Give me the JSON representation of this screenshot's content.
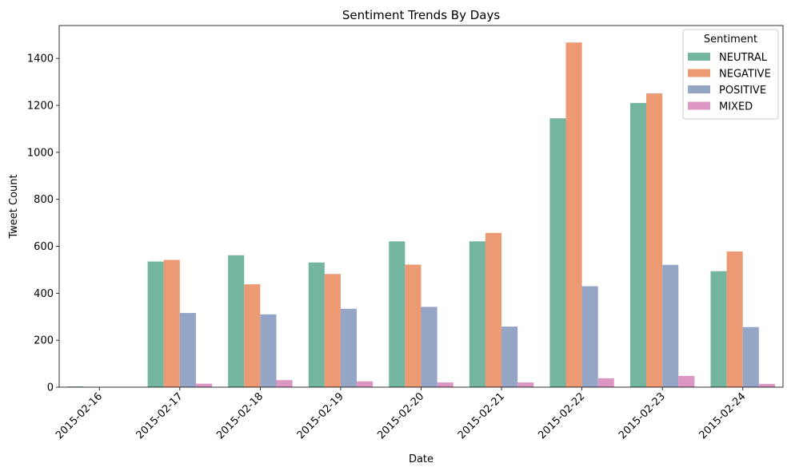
{
  "chart_data": {
    "type": "bar",
    "title": "Sentiment Trends By Days",
    "xlabel": "Date",
    "ylabel": "Tweet Count",
    "categories": [
      "2015-02-16",
      "2015-02-17",
      "2015-02-18",
      "2015-02-19",
      "2015-02-20",
      "2015-02-21",
      "2015-02-22",
      "2015-02-23",
      "2015-02-24"
    ],
    "series": [
      {
        "name": "NEUTRAL",
        "color": "#73b59e",
        "values": [
          3,
          535,
          562,
          531,
          621,
          621,
          1145,
          1210,
          494
        ]
      },
      {
        "name": "NEGATIVE",
        "color": "#ec9a73",
        "values": [
          0,
          542,
          438,
          482,
          522,
          657,
          1468,
          1251,
          578
        ]
      },
      {
        "name": "POSITIVE",
        "color": "#95a5c6",
        "values": [
          0,
          316,
          310,
          334,
          342,
          258,
          430,
          521,
          256
        ]
      },
      {
        "name": "MIXED",
        "color": "#dc96c3",
        "values": [
          0,
          15,
          30,
          25,
          20,
          20,
          38,
          48,
          14
        ]
      }
    ],
    "ylim": [
      0,
      1540
    ],
    "yticks": [
      0,
      200,
      400,
      600,
      800,
      1000,
      1200,
      1400
    ],
    "grid": false,
    "legend": {
      "title": "Sentiment",
      "position": "top-right"
    }
  }
}
